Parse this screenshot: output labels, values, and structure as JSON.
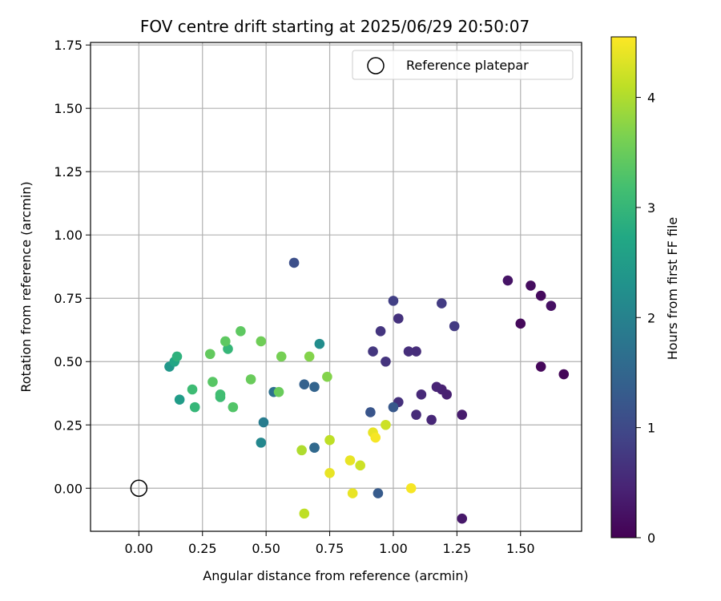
{
  "chart_data": {
    "type": "scatter",
    "title": "FOV centre drift starting at 2025/06/29 20:50:07",
    "xlabel": "Angular distance from reference (arcmin)",
    "ylabel": "Rotation from reference (arcmin)",
    "xlim": [
      -0.19,
      1.74
    ],
    "ylim": [
      -0.17,
      1.76
    ],
    "xticks": [
      0.0,
      0.25,
      0.5,
      0.75,
      1.0,
      1.25,
      1.5
    ],
    "xtick_labels": [
      "0.00",
      "0.25",
      "0.50",
      "0.75",
      "1.00",
      "1.25",
      "1.50"
    ],
    "yticks": [
      0.0,
      0.25,
      0.5,
      0.75,
      1.0,
      1.25,
      1.5,
      1.75
    ],
    "ytick_labels": [
      "0.00",
      "0.25",
      "0.50",
      "0.75",
      "1.00",
      "1.25",
      "1.50",
      "1.75"
    ],
    "grid": true,
    "legend": {
      "position": "top-right",
      "entries": [
        "Reference platepar"
      ]
    },
    "reference_point": {
      "x": 0.0,
      "y": 0.0,
      "label": "Reference platepar"
    },
    "colorbar": {
      "label": "Hours from first FF file",
      "colormap": "viridis",
      "range": [
        0,
        4.55
      ],
      "ticks": [
        0,
        1,
        2,
        3,
        4
      ],
      "tick_labels": [
        "0",
        "1",
        "2",
        "3",
        "4"
      ]
    },
    "points": [
      {
        "x": 1.67,
        "y": 0.45,
        "hours": 0.05
      },
      {
        "x": 1.58,
        "y": 0.48,
        "hours": 0.08
      },
      {
        "x": 1.5,
        "y": 0.65,
        "hours": 0.1
      },
      {
        "x": 1.58,
        "y": 0.76,
        "hours": 0.12
      },
      {
        "x": 1.54,
        "y": 0.8,
        "hours": 0.15
      },
      {
        "x": 1.62,
        "y": 0.72,
        "hours": 0.2
      },
      {
        "x": 1.45,
        "y": 0.82,
        "hours": 0.25
      },
      {
        "x": 1.27,
        "y": -0.12,
        "hours": 0.3
      },
      {
        "x": 1.27,
        "y": 0.29,
        "hours": 0.35
      },
      {
        "x": 1.21,
        "y": 0.37,
        "hours": 0.4
      },
      {
        "x": 1.19,
        "y": 0.39,
        "hours": 0.42
      },
      {
        "x": 1.17,
        "y": 0.4,
        "hours": 0.45
      },
      {
        "x": 1.15,
        "y": 0.27,
        "hours": 0.5
      },
      {
        "x": 1.11,
        "y": 0.37,
        "hours": 0.52
      },
      {
        "x": 1.09,
        "y": 0.29,
        "hours": 0.55
      },
      {
        "x": 1.09,
        "y": 0.54,
        "hours": 0.58
      },
      {
        "x": 1.06,
        "y": 0.54,
        "hours": 0.6
      },
      {
        "x": 1.02,
        "y": 0.34,
        "hours": 0.62
      },
      {
        "x": 1.02,
        "y": 0.67,
        "hours": 0.65
      },
      {
        "x": 0.97,
        "y": 0.5,
        "hours": 0.68
      },
      {
        "x": 0.95,
        "y": 0.62,
        "hours": 0.7
      },
      {
        "x": 0.92,
        "y": 0.54,
        "hours": 0.72
      },
      {
        "x": 1.24,
        "y": 0.64,
        "hours": 0.78
      },
      {
        "x": 1.0,
        "y": 0.74,
        "hours": 0.85
      },
      {
        "x": 1.19,
        "y": 0.73,
        "hours": 0.8
      },
      {
        "x": 0.61,
        "y": 0.89,
        "hours": 1.1
      },
      {
        "x": 0.91,
        "y": 0.3,
        "hours": 1.2
      },
      {
        "x": 1.0,
        "y": 0.32,
        "hours": 1.25
      },
      {
        "x": 0.94,
        "y": -0.02,
        "hours": 1.3
      },
      {
        "x": 0.65,
        "y": 0.41,
        "hours": 1.4
      },
      {
        "x": 0.69,
        "y": 0.4,
        "hours": 1.45
      },
      {
        "x": 0.69,
        "y": 0.16,
        "hours": 1.5
      },
      {
        "x": 0.69,
        "y": 0.16,
        "hours": 1.55
      },
      {
        "x": 0.53,
        "y": 0.38,
        "hours": 1.7
      },
      {
        "x": 0.49,
        "y": 0.26,
        "hours": 1.9
      },
      {
        "x": 0.48,
        "y": 0.18,
        "hours": 2.1
      },
      {
        "x": 0.71,
        "y": 0.57,
        "hours": 2.2
      },
      {
        "x": 0.12,
        "y": 0.48,
        "hours": 2.4
      },
      {
        "x": 0.16,
        "y": 0.35,
        "hours": 2.5
      },
      {
        "x": 0.14,
        "y": 0.5,
        "hours": 2.7
      },
      {
        "x": 0.15,
        "y": 0.52,
        "hours": 2.9
      },
      {
        "x": 0.22,
        "y": 0.32,
        "hours": 3.0
      },
      {
        "x": 0.21,
        "y": 0.39,
        "hours": 3.1
      },
      {
        "x": 0.32,
        "y": 0.36,
        "hours": 3.1
      },
      {
        "x": 0.32,
        "y": 0.37,
        "hours": 3.15
      },
      {
        "x": 0.35,
        "y": 0.55,
        "hours": 3.0
      },
      {
        "x": 0.37,
        "y": 0.32,
        "hours": 3.3
      },
      {
        "x": 0.29,
        "y": 0.42,
        "hours": 3.35
      },
      {
        "x": 0.34,
        "y": 0.58,
        "hours": 3.4
      },
      {
        "x": 0.28,
        "y": 0.53,
        "hours": 3.45
      },
      {
        "x": 0.4,
        "y": 0.62,
        "hours": 3.4
      },
      {
        "x": 0.44,
        "y": 0.43,
        "hours": 3.5
      },
      {
        "x": 0.48,
        "y": 0.58,
        "hours": 3.55
      },
      {
        "x": 0.55,
        "y": 0.38,
        "hours": 3.5
      },
      {
        "x": 0.56,
        "y": 0.52,
        "hours": 3.6
      },
      {
        "x": 0.67,
        "y": 0.52,
        "hours": 3.7
      },
      {
        "x": 0.74,
        "y": 0.44,
        "hours": 3.7
      },
      {
        "x": 0.64,
        "y": 0.15,
        "hours": 4.0
      },
      {
        "x": 0.65,
        "y": -0.1,
        "hours": 4.1
      },
      {
        "x": 0.75,
        "y": 0.19,
        "hours": 4.1
      },
      {
        "x": 0.97,
        "y": 0.25,
        "hours": 4.2
      },
      {
        "x": 0.87,
        "y": 0.09,
        "hours": 4.2
      },
      {
        "x": 0.75,
        "y": 0.06,
        "hours": 4.4
      },
      {
        "x": 0.84,
        "y": -0.02,
        "hours": 4.4
      },
      {
        "x": 0.83,
        "y": 0.11,
        "hours": 4.4
      },
      {
        "x": 0.92,
        "y": 0.22,
        "hours": 4.4
      },
      {
        "x": 0.93,
        "y": 0.2,
        "hours": 4.5
      },
      {
        "x": 1.07,
        "y": 0.0,
        "hours": 4.5
      }
    ]
  }
}
